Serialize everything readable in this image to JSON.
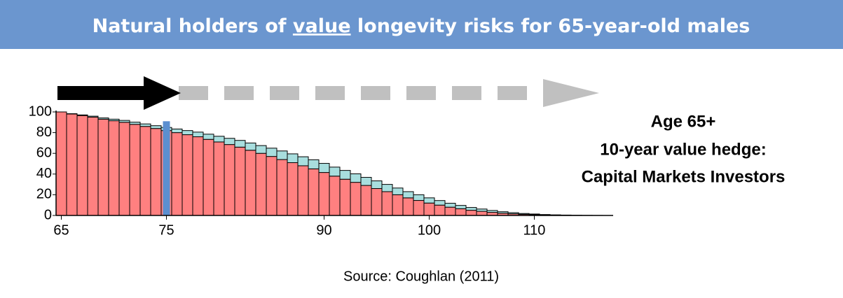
{
  "chart_data": {
    "type": "bar",
    "title": [
      "Natural holders of ",
      "value",
      " longevity risks for 65-year-old males"
    ],
    "annotation": [
      "Age 65+",
      "10-year value hedge:",
      "Capital Markets Investors"
    ],
    "source": "Source: Coughlan (2011)",
    "x": [
      65,
      66,
      67,
      68,
      69,
      70,
      71,
      72,
      73,
      74,
      75,
      76,
      77,
      78,
      79,
      80,
      81,
      82,
      83,
      84,
      85,
      86,
      87,
      88,
      89,
      90,
      91,
      92,
      93,
      94,
      95,
      96,
      97,
      98,
      99,
      100,
      101,
      102,
      103,
      104,
      105,
      106,
      107,
      108,
      109,
      110,
      111,
      112,
      113,
      114,
      115,
      116
    ],
    "xlim": [
      64.5,
      117.5
    ],
    "xticks": [
      65,
      75,
      90,
      100,
      110
    ],
    "ylim": [
      0,
      100
    ],
    "yticks": [
      0,
      20,
      40,
      60,
      80,
      100
    ],
    "series": [
      {
        "color": "#ff8080",
        "values": [
          100,
          98,
          96.5,
          95,
          93,
          91.5,
          90,
          88,
          86,
          84,
          82,
          80,
          78,
          76,
          73.5,
          71,
          68.5,
          66,
          63,
          60,
          57,
          54,
          51,
          48,
          45,
          41.5,
          38,
          35,
          32,
          29,
          26,
          23,
          20,
          17,
          14.5,
          12,
          10,
          8,
          6.5,
          5,
          4,
          3,
          2.2,
          1.6,
          1.1,
          0.8,
          0.5,
          0.3,
          0.2,
          0.1,
          0.05,
          0.02
        ]
      },
      {
        "color": "#a8dede",
        "values": [
          0,
          0.3,
          0.6,
          0.9,
          1.2,
          1.5,
          1.8,
          2.1,
          2.4,
          2.7,
          3,
          3.5,
          4,
          4.5,
          5,
          5.5,
          6,
          6.5,
          7,
          7.5,
          8,
          8.3,
          8.5,
          8.7,
          8.8,
          8.8,
          8.7,
          8.5,
          8.2,
          7.8,
          7.4,
          7,
          6.5,
          6,
          5.5,
          5,
          4.4,
          3.8,
          3.2,
          2.7,
          2.2,
          1.8,
          1.4,
          1.1,
          0.8,
          0.6,
          0.4,
          0.3,
          0.2,
          0.1,
          0.05,
          0.02
        ]
      }
    ],
    "highlight": {
      "x": 75,
      "value": 91,
      "color": "#5b8fd0"
    }
  }
}
